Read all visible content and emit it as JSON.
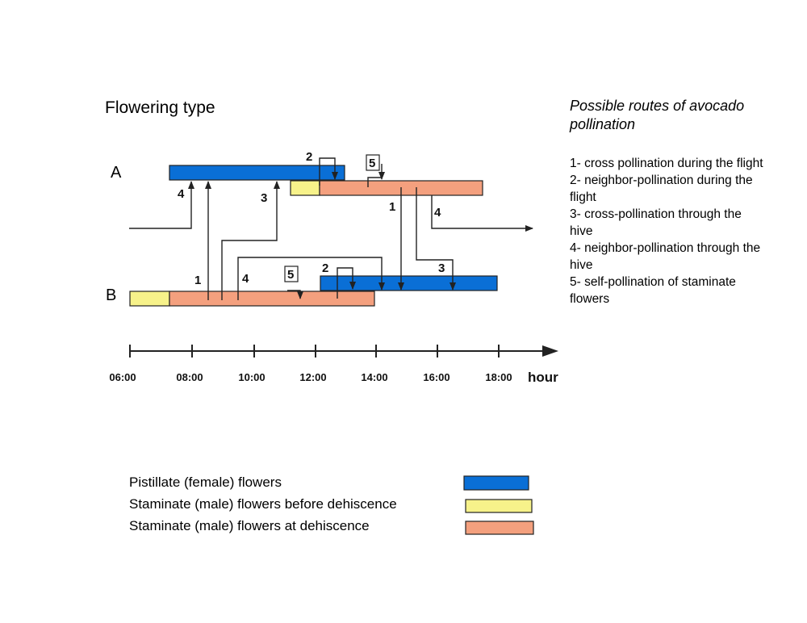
{
  "flowering_type_title": "Flowering type",
  "type_labels": {
    "a": "A",
    "b": "B"
  },
  "routes": {
    "title": "Possible routes of avocado pollination",
    "items": [
      "1- cross pollination during the flight",
      "2- neighbor-pollination during the flight",
      "3- cross-pollination through the hive",
      "4- neighbor-pollination through the hive",
      "5- self-pollination of staminate flowers"
    ]
  },
  "axis": {
    "ticks": [
      "06:00",
      "08:00",
      "10:00",
      "12:00",
      "14:00",
      "16:00",
      "18:00"
    ],
    "unit": "hour"
  },
  "arrow_numbers": {
    "a": [
      "4",
      "3",
      "2",
      "5",
      "1",
      "4"
    ],
    "b": [
      "1",
      "4",
      "5",
      "2",
      "3"
    ]
  },
  "legend": {
    "items": [
      {
        "label": "Pistillate (female) flowers",
        "color": "#0a6fd6"
      },
      {
        "label": "Staminate (male) flowers before dehiscence",
        "color": "#f7f28a"
      },
      {
        "label": "Staminate (male) flowers at dehiscence",
        "color": "#f4a07e"
      }
    ]
  },
  "colors": {
    "pistillate": "#0a6fd6",
    "before": "#f7f28a",
    "dehiscence": "#f4a07e"
  }
}
